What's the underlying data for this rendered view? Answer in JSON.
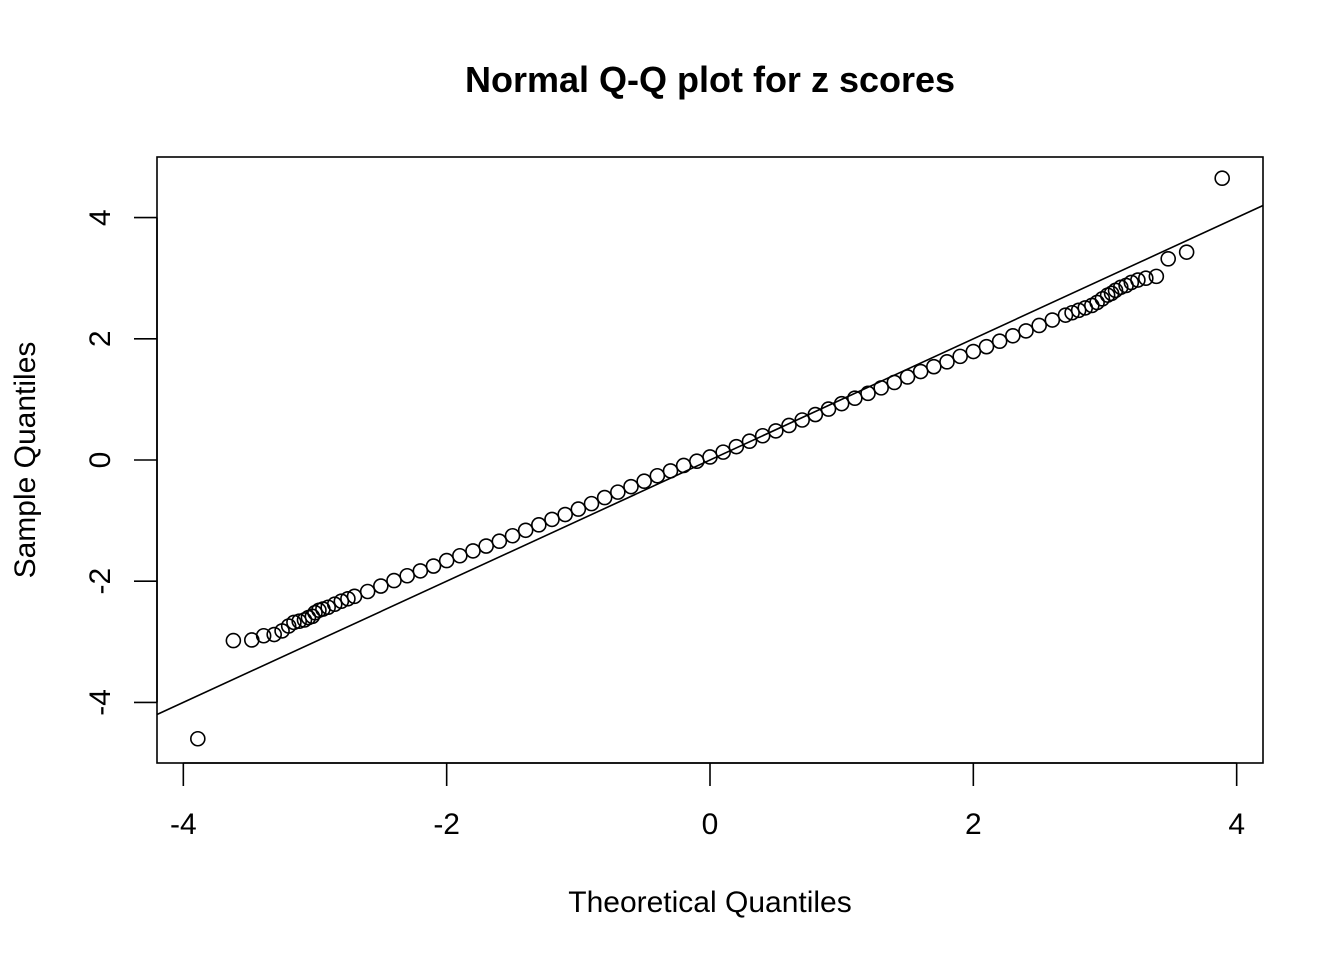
{
  "chart_data": {
    "type": "scatter",
    "title": "Normal Q-Q plot for z scores",
    "xlabel": "Theoretical Quantiles",
    "ylabel": "Sample Quantiles",
    "xlim": [
      -4.2,
      4.2
    ],
    "ylim": [
      -5.0,
      5.0
    ],
    "x_ticks": [
      -4,
      -2,
      0,
      2,
      4
    ],
    "x_tick_labels": [
      "-4",
      "-2",
      "0",
      "2",
      "4"
    ],
    "y_ticks": [
      -4,
      -2,
      0,
      2,
      4
    ],
    "y_tick_labels": [
      "-4",
      "-2",
      "0",
      "2",
      "4"
    ],
    "grid": false,
    "legend": "none",
    "marker": "open-circle",
    "colors": {
      "points": "#000000",
      "line": "#000000",
      "frame": "#000000"
    },
    "reference_line": {
      "slope": 1.0,
      "intercept": 0.0
    },
    "series": [
      {
        "x": [
          -3.89,
          -3.62,
          -3.48,
          -3.39,
          -3.31,
          -3.25,
          -3.2,
          -3.16,
          -3.12,
          -3.08,
          -3.05,
          -3.02,
          -3.0,
          -2.97,
          -2.94,
          -2.9,
          -2.85,
          -2.8,
          -2.75,
          -2.7,
          -2.6,
          -2.5,
          -2.4,
          -2.3,
          -2.2,
          -2.1,
          -2.0,
          -1.9,
          -1.8,
          -1.7,
          -1.6,
          -1.5,
          -1.4,
          -1.3,
          -1.2,
          -1.1,
          -1.0,
          -0.9,
          -0.8,
          -0.7,
          -0.6,
          -0.5,
          -0.4,
          -0.3,
          -0.2,
          -0.1,
          0.0,
          0.1,
          0.2,
          0.3,
          0.4,
          0.5,
          0.6,
          0.7,
          0.8,
          0.9,
          1.0,
          1.1,
          1.2,
          1.3,
          1.4,
          1.5,
          1.6,
          1.7,
          1.8,
          1.9,
          2.0,
          2.1,
          2.2,
          2.3,
          2.4,
          2.5,
          2.6,
          2.7,
          2.75,
          2.8,
          2.85,
          2.9,
          2.94,
          2.98,
          3.02,
          3.05,
          3.08,
          3.12,
          3.16,
          3.2,
          3.25,
          3.31,
          3.39,
          3.48,
          3.62,
          3.89
        ],
        "y": [
          -4.6,
          -2.98,
          -2.97,
          -2.9,
          -2.88,
          -2.82,
          -2.74,
          -2.68,
          -2.66,
          -2.64,
          -2.6,
          -2.58,
          -2.52,
          -2.48,
          -2.46,
          -2.43,
          -2.38,
          -2.33,
          -2.29,
          -2.25,
          -2.17,
          -2.08,
          -1.99,
          -1.91,
          -1.83,
          -1.75,
          -1.66,
          -1.58,
          -1.5,
          -1.42,
          -1.34,
          -1.25,
          -1.16,
          -1.07,
          -0.98,
          -0.9,
          -0.81,
          -0.72,
          -0.62,
          -0.53,
          -0.44,
          -0.35,
          -0.26,
          -0.18,
          -0.09,
          -0.02,
          0.05,
          0.13,
          0.22,
          0.31,
          0.4,
          0.48,
          0.57,
          0.66,
          0.75,
          0.84,
          0.93,
          1.02,
          1.1,
          1.19,
          1.28,
          1.37,
          1.46,
          1.54,
          1.62,
          1.71,
          1.79,
          1.87,
          1.96,
          2.05,
          2.13,
          2.22,
          2.31,
          2.39,
          2.43,
          2.47,
          2.51,
          2.55,
          2.6,
          2.66,
          2.72,
          2.75,
          2.8,
          2.85,
          2.88,
          2.93,
          2.97,
          3.0,
          3.03,
          3.32,
          3.43,
          4.65
        ]
      }
    ]
  }
}
